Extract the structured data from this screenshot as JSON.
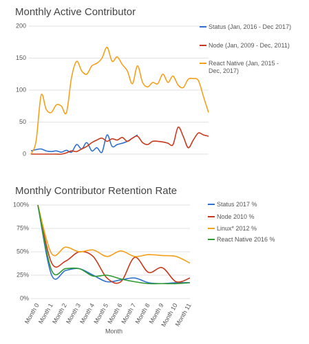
{
  "chart_data": [
    {
      "type": "line",
      "title": "Monthly Active Contributor",
      "categories": [
        null,
        null,
        null,
        null,
        null,
        null,
        null,
        null,
        null,
        null,
        null,
        null,
        null,
        null,
        null,
        null,
        null,
        null,
        null,
        null,
        null,
        null,
        null,
        null,
        null,
        null,
        null,
        null,
        null,
        null,
        null,
        null,
        null,
        null,
        null,
        null
      ],
      "ylim": [
        0,
        200
      ],
      "yticks": [
        0,
        50,
        100,
        150,
        200
      ],
      "grid": true,
      "series": [
        {
          "name": "Status (Jan, 2016 - Dec 2017)",
          "color": "#2f6fd0",
          "values": [
            5,
            7,
            8,
            5,
            4,
            5,
            3,
            6,
            3,
            15,
            8,
            18,
            5,
            10,
            3,
            30,
            12,
            15,
            17,
            20,
            25,
            30,
            null,
            null,
            null,
            null,
            null,
            null,
            null,
            null,
            null,
            null,
            null,
            null,
            null,
            null
          ]
        },
        {
          "name": "Node (Jan, 2009 - Dec, 2011)",
          "color": "#c8381a",
          "values": [
            0,
            0,
            0,
            0,
            0,
            0,
            0,
            2,
            5,
            4,
            8,
            12,
            18,
            22,
            25,
            20,
            24,
            22,
            26,
            20,
            25,
            28,
            18,
            15,
            20,
            20,
            19,
            17,
            15,
            42,
            28,
            10,
            22,
            33,
            30,
            28
          ]
        },
        {
          "name": "React Native (Jan, 2015 - Dec, 2017)",
          "color": "#f5a01a",
          "values": [
            0,
            20,
            92,
            70,
            65,
            77,
            75,
            65,
            120,
            145,
            130,
            125,
            138,
            142,
            150,
            167,
            145,
            152,
            140,
            130,
            110,
            138,
            112,
            105,
            112,
            110,
            125,
            112,
            122,
            108,
            104,
            117,
            118,
            115,
            90,
            65
          ]
        }
      ]
    },
    {
      "type": "line",
      "title": "Monthly Contributor Retention Rate",
      "x_label": "Month",
      "categories": [
        "Month 0",
        "Month 1",
        "Month 2",
        "Month 3",
        "Month 4",
        "Month 5",
        "Month 6",
        "Month 7",
        "Month 8",
        "Month 9",
        "Month 10",
        "Month 11"
      ],
      "ylim": [
        0,
        100
      ],
      "yticks": [
        {
          "value": 0,
          "label": "0%"
        },
        {
          "value": 25,
          "label": "25%"
        },
        {
          "value": 50,
          "label": "50%"
        },
        {
          "value": 75,
          "label": "75%"
        },
        {
          "value": 100,
          "label": "100%"
        }
      ],
      "grid": true,
      "series": [
        {
          "name": "Status 2017 %",
          "color": "#2f6fd0",
          "values": [
            100,
            25,
            30,
            32,
            25,
            18,
            20,
            22,
            17,
            16,
            17,
            17
          ]
        },
        {
          "name": "Node 2010 %",
          "color": "#c8381a",
          "values": [
            100,
            38,
            40,
            50,
            45,
            22,
            18,
            44,
            28,
            33,
            18,
            22
          ]
        },
        {
          "name": "Linux* 2012 %",
          "color": "#f5a01a",
          "values": [
            100,
            48,
            55,
            50,
            52,
            45,
            51,
            45,
            47,
            46,
            45,
            38
          ]
        },
        {
          "name": "React Native  2016 %",
          "color": "#2e9a30",
          "values": [
            100,
            30,
            32,
            32,
            24,
            25,
            21,
            18,
            16,
            16,
            16,
            17
          ]
        }
      ]
    }
  ]
}
